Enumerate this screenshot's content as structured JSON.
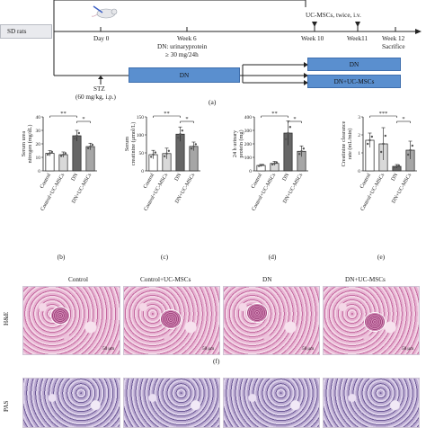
{
  "timeline": {
    "sd_rats": "SD rats",
    "day0": "Day 0",
    "week6": "Week 6",
    "dn_criterion": "DN: urinaryprotein",
    "dn_threshold": "≥ 30 mg/24h",
    "week10": "Week 10",
    "week11": "Week11",
    "week12": "Week 12",
    "sacrifice": "Sacrifice",
    "ucmsc_dose": "UC-MSCs, twice, i.v.",
    "stz": "STZ",
    "stz_dose": "(60 mg/kg, i.p.)",
    "dn_bar": "DN",
    "dn_bar2": "DN",
    "dn_ucmsc_bar": "DN+UC-MSCs",
    "panel_label": "(a)",
    "colors": {
      "dn_bar": "#5a8fcf",
      "sd_box": "#e9eaee"
    }
  },
  "chart_data": [
    {
      "type": "bar",
      "panel": "(b)",
      "ylabel": [
        "Serum urea",
        "nitrogen (mg/dL)"
      ],
      "categories": [
        "Control",
        "Control+UC-MSCs",
        "DN",
        "DN+UC-MSCs"
      ],
      "values": [
        13,
        12,
        26,
        18
      ],
      "errors": [
        2,
        2,
        4,
        2.5
      ],
      "ylim": [
        0,
        40
      ],
      "yticks": [
        "0",
        "10",
        "20",
        "30",
        "40"
      ],
      "sig": [
        {
          "from": 0,
          "to": 2,
          "label": "**"
        },
        {
          "from": 2,
          "to": 3,
          "label": "*"
        }
      ]
    },
    {
      "type": "bar",
      "panel": "(c)",
      "ylabel": [
        "Serum",
        "creatinine (μmol/L)"
      ],
      "categories": [
        "Control",
        "Control+UC-MSCs",
        "DN",
        "DN+UC-MSCs"
      ],
      "values": [
        45,
        48,
        102,
        68
      ],
      "errors": [
        12,
        15,
        20,
        12
      ],
      "ylim": [
        0,
        150
      ],
      "yticks": [
        "0",
        "50",
        "100",
        "150"
      ],
      "sig": [
        {
          "from": 0,
          "to": 2,
          "label": "**"
        },
        {
          "from": 2,
          "to": 3,
          "label": "*"
        }
      ]
    },
    {
      "type": "bar",
      "panel": "(d)",
      "ylabel": [
        "24 h urinary",
        "protein (mg)"
      ],
      "categories": [
        "Control",
        "Control+UC-MSCs",
        "DN",
        "DN+UC-MSCs"
      ],
      "values": [
        40,
        55,
        280,
        145
      ],
      "errors": [
        8,
        15,
        90,
        40
      ],
      "ylim": [
        0,
        400
      ],
      "yticks": [
        "0",
        "100",
        "200",
        "300",
        "400"
      ],
      "sig": [
        {
          "from": 0,
          "to": 2,
          "label": "**"
        },
        {
          "from": 2,
          "to": 3,
          "label": "*"
        }
      ]
    },
    {
      "type": "bar",
      "panel": "(e)",
      "ylabel": [
        "Creatinine clearance",
        "rate (mL/min)"
      ],
      "categories": [
        "Control",
        "Control+UC-MSCs",
        "DN",
        "DN+UC-MSCs"
      ],
      "values": [
        1.7,
        1.5,
        0.25,
        1.15
      ],
      "errors": [
        0.4,
        0.9,
        0.1,
        0.5
      ],
      "ylim": [
        0,
        3
      ],
      "yticks": [
        "0",
        "1",
        "2",
        "3"
      ],
      "sig": [
        {
          "from": 0,
          "to": 2,
          "label": "***"
        },
        {
          "from": 2,
          "to": 3,
          "label": "*"
        }
      ]
    }
  ],
  "histology": {
    "columns": [
      "Control",
      "Control+UC-MSCs",
      "DN",
      "DN+UC-MSCs"
    ],
    "rows": [
      "H&E",
      "PAS"
    ],
    "scale_bar": "50 μm",
    "panel_label": "(f)"
  }
}
